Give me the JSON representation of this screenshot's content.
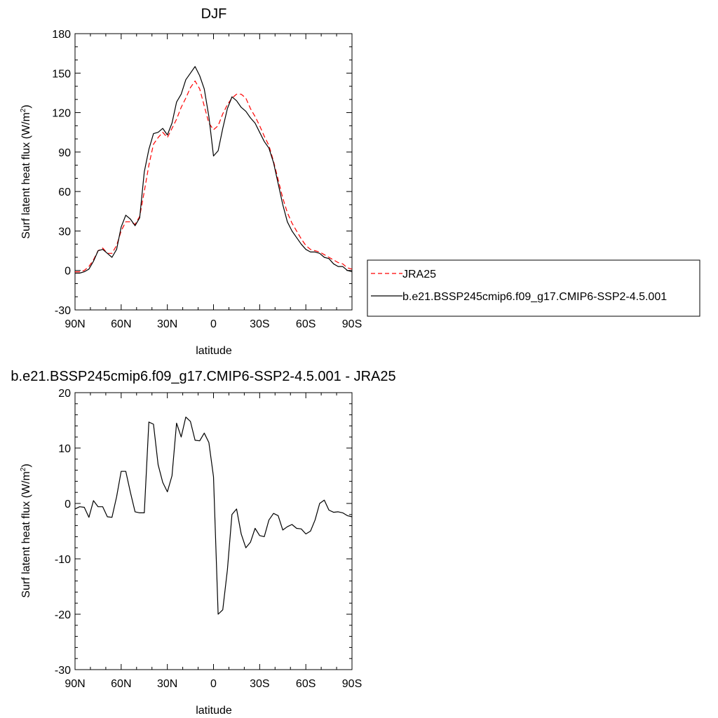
{
  "chart_data": [
    {
      "type": "line",
      "title": "DJF",
      "xlabel": "latitude",
      "ylabel": "Surf latent heat flux (W/m",
      "ylabel_sup": "2",
      "ylabel_tail": ")",
      "xlim": [
        90,
        -90
      ],
      "ylim": [
        -30,
        180
      ],
      "xticks": [
        90,
        60,
        30,
        0,
        -30,
        -60,
        -90
      ],
      "xtick_labels": [
        "90N",
        "60N",
        "30N",
        "0",
        "30S",
        "60S",
        "90S"
      ],
      "yticks": [
        -30,
        0,
        30,
        60,
        90,
        120,
        150,
        180
      ],
      "ytick_labels": [
        "-30",
        "0",
        "30",
        "60",
        "90",
        "120",
        "150",
        "180"
      ],
      "legend_position": "right",
      "series": [
        {
          "name": "JRA25",
          "color": "#ff0000",
          "dash": "dashed",
          "x": [
            90,
            87,
            84,
            81,
            78,
            75,
            72,
            69,
            66,
            63,
            60,
            57,
            54,
            51,
            48,
            45,
            42,
            39,
            36,
            33,
            30,
            27,
            24,
            21,
            18,
            15,
            12,
            9,
            6,
            3,
            0,
            -3,
            -6,
            -9,
            -12,
            -15,
            -18,
            -21,
            -24,
            -27,
            -30,
            -33,
            -36,
            -39,
            -42,
            -45,
            -48,
            -51,
            -54,
            -57,
            -60,
            -63,
            -66,
            -69,
            -72,
            -75,
            -78,
            -81,
            -84,
            -87,
            -90
          ],
          "y": [
            -1,
            -1,
            0,
            3,
            8,
            15,
            17,
            13,
            13,
            19,
            30,
            37,
            37,
            35,
            41,
            60,
            80,
            96,
            101,
            105,
            101,
            108,
            115,
            124,
            131,
            139,
            144,
            138,
            125,
            112,
            107,
            110,
            119,
            126,
            131,
            134,
            134,
            131,
            123,
            117,
            110,
            102,
            95,
            83,
            69,
            55,
            44,
            36,
            30,
            24,
            19,
            16,
            15,
            14,
            12,
            10,
            8,
            6,
            5,
            2,
            1
          ]
        },
        {
          "name": "b.e21.BSSP245cmip6.f09_g17.CMIP6-SSP2-4.5.001",
          "color": "#000000",
          "dash": "solid",
          "x": [
            90,
            87,
            84,
            81,
            78,
            75,
            72,
            69,
            66,
            63,
            60,
            57,
            54,
            51,
            48,
            45,
            42,
            39,
            36,
            33,
            30,
            27,
            24,
            21,
            18,
            15,
            12,
            9,
            6,
            3,
            0,
            -3,
            -6,
            -9,
            -12,
            -15,
            -18,
            -21,
            -24,
            -27,
            -30,
            -33,
            -36,
            -39,
            -42,
            -45,
            -48,
            -51,
            -54,
            -57,
            -60,
            -63,
            -66,
            -69,
            -72,
            -75,
            -78,
            -81,
            -84,
            -87,
            -90
          ],
          "y": [
            -2,
            -2,
            -1,
            1,
            7,
            15,
            16,
            13,
            10,
            16,
            33,
            42,
            39,
            34,
            40,
            75,
            92,
            104,
            105,
            108,
            103,
            112,
            128,
            134,
            145,
            150,
            155,
            148,
            138,
            117,
            87,
            91,
            108,
            123,
            132,
            129,
            124,
            121,
            116,
            112,
            105,
            98,
            93,
            82,
            66,
            50,
            37,
            30,
            25,
            20,
            16,
            14,
            14,
            13,
            10,
            9,
            5,
            3,
            3,
            0,
            -1
          ]
        }
      ]
    },
    {
      "type": "line",
      "title": "b.e21.BSSP245cmip6.f09_g17.CMIP6-SSP2-4.5.001 - JRA25",
      "xlabel": "latitude",
      "ylabel": "Surf latent heat flux (W/m",
      "ylabel_sup": "2",
      "ylabel_tail": ")",
      "xlim": [
        90,
        -90
      ],
      "ylim": [
        -30,
        20
      ],
      "xticks": [
        90,
        60,
        30,
        0,
        -30,
        -60,
        -90
      ],
      "xtick_labels": [
        "90N",
        "60N",
        "30N",
        "0",
        "30S",
        "60S",
        "90S"
      ],
      "yticks": [
        -30,
        -20,
        -10,
        0,
        10,
        20
      ],
      "ytick_labels": [
        "-30",
        "-20",
        "-10",
        "0",
        "10",
        "20"
      ],
      "series": [
        {
          "color": "#000000",
          "dash": "solid",
          "x": [
            90,
            87,
            84,
            81,
            78,
            75,
            72,
            69,
            66,
            63,
            60,
            57,
            54,
            51,
            48,
            45,
            42,
            39,
            36,
            33,
            30,
            27,
            24,
            21,
            18,
            15,
            12,
            9,
            6,
            3,
            0,
            -3,
            -6,
            -9,
            -12,
            -15,
            -18,
            -21,
            -24,
            -27,
            -30,
            -33,
            -36,
            -39,
            -42,
            -45,
            -48,
            -51,
            -54,
            -57,
            -60,
            -63,
            -66,
            -69,
            -72,
            -75,
            -78,
            -81,
            -84,
            -87,
            -90
          ],
          "y": [
            -1,
            -0.6,
            -0.7,
            -2.5,
            0.5,
            -0.6,
            -0.6,
            -2.4,
            -2.5,
            1.2,
            5.8,
            5.8,
            2,
            -1.5,
            -1.7,
            -1.7,
            14.7,
            14.3,
            7,
            3.8,
            2.1,
            5,
            14.5,
            12,
            15.6,
            14.8,
            11.4,
            11.3,
            12.7,
            11,
            4.8,
            -20,
            -19.2,
            -12,
            -2,
            -1,
            -5.5,
            -8,
            -7,
            -4.5,
            -5.8,
            -6,
            -3,
            -1.8,
            -2.2,
            -4.8,
            -4.2,
            -3.8,
            -4.5,
            -4.6,
            -5.5,
            -5,
            -3,
            0,
            0.6,
            -1.2,
            -1.6,
            -1.5,
            -1.7,
            -2.2,
            -2.4
          ]
        }
      ]
    }
  ]
}
